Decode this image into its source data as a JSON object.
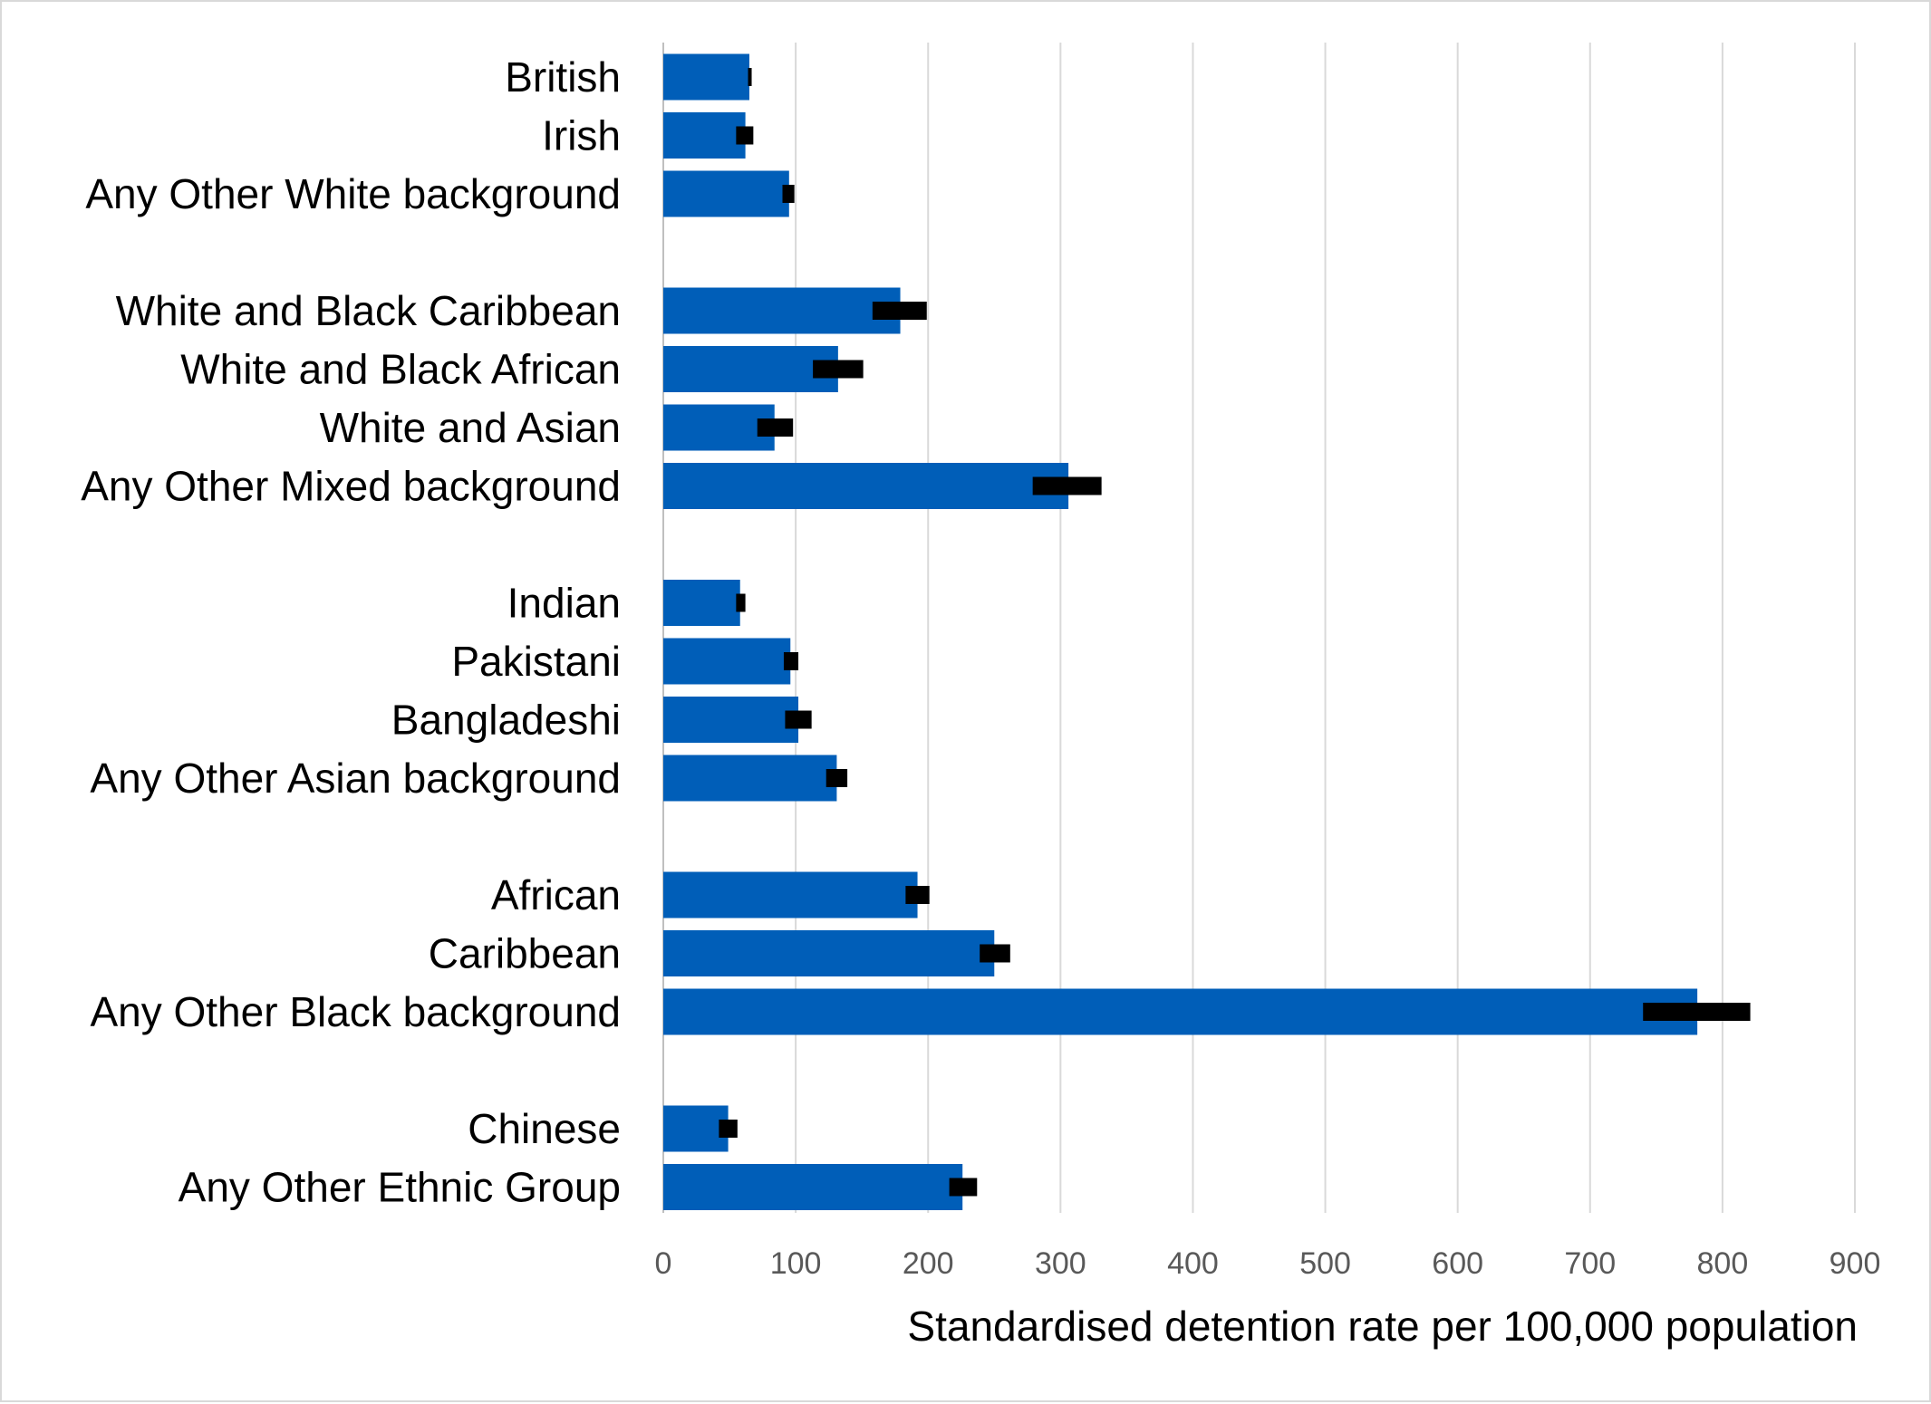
{
  "chart_data": {
    "type": "bar",
    "orientation": "horizontal",
    "title": "",
    "xlabel": "Standardised detention rate per 100,000 population",
    "ylabel": "",
    "xlim": [
      0,
      900
    ],
    "xticks": [
      "0",
      "100",
      "200",
      "300",
      "400",
      "500",
      "600",
      "700",
      "800",
      "900"
    ],
    "grid": true,
    "legend": "none",
    "bar_color": "#005EB8",
    "error_color": "#000000",
    "categories": [
      {
        "label": "British",
        "value": 65,
        "ci": [
          64,
          66
        ]
      },
      {
        "label": "Irish",
        "value": 62,
        "ci": [
          55,
          68
        ]
      },
      {
        "label": "Any Other White background",
        "value": 95,
        "ci": [
          90,
          99
        ]
      },
      {
        "label": "White and Black Caribbean",
        "value": 179,
        "ci": [
          158,
          199
        ]
      },
      {
        "label": "White and Black African",
        "value": 132,
        "ci": [
          113,
          151
        ]
      },
      {
        "label": "White and Asian",
        "value": 84,
        "ci": [
          71,
          98
        ]
      },
      {
        "label": "Any Other Mixed background",
        "value": 306,
        "ci": [
          279,
          331
        ]
      },
      {
        "label": "Indian",
        "value": 58,
        "ci": [
          55,
          62
        ]
      },
      {
        "label": "Pakistani",
        "value": 96,
        "ci": [
          91,
          102
        ]
      },
      {
        "label": "Bangladeshi",
        "value": 102,
        "ci": [
          92,
          112
        ]
      },
      {
        "label": "Any Other Asian background",
        "value": 131,
        "ci": [
          123,
          139
        ]
      },
      {
        "label": "African",
        "value": 192,
        "ci": [
          183,
          201
        ]
      },
      {
        "label": "Caribbean",
        "value": 250,
        "ci": [
          239,
          262
        ]
      },
      {
        "label": "Any Other Black background",
        "value": 781,
        "ci": [
          740,
          821
        ]
      },
      {
        "label": "Chinese",
        "value": 49,
        "ci": [
          42,
          56
        ]
      },
      {
        "label": "Any Other Ethnic Group",
        "value": 226,
        "ci": [
          216,
          237
        ]
      }
    ]
  }
}
